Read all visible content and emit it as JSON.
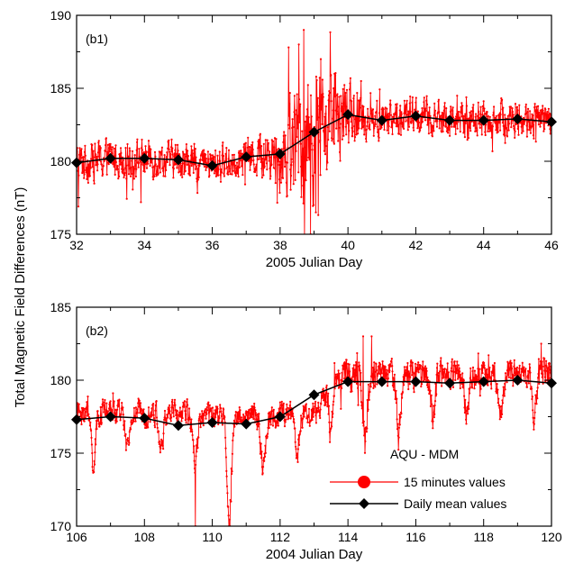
{
  "figure": {
    "ylabel": "Total Magnetic Field Differences (nT)",
    "colors": {
      "minutes": "#ff0000",
      "daily": "#000000",
      "axis": "#000000"
    }
  },
  "legend": {
    "title": "AQU - MDM",
    "items": [
      {
        "label": "15 minutes values",
        "color": "#ff0000",
        "marker": "circle"
      },
      {
        "label": "Daily mean values",
        "color": "#000000",
        "marker": "diamond"
      }
    ]
  },
  "chart_data": [
    {
      "type": "line",
      "panel_label": "(b1)",
      "xlabel": "2005 Julian Day",
      "xlim": [
        32,
        46
      ],
      "ylim": [
        175,
        190
      ],
      "xticks": [
        32,
        34,
        36,
        38,
        40,
        42,
        44,
        46
      ],
      "yticks": [
        175,
        180,
        185,
        190
      ],
      "grid": false,
      "daily_mean": {
        "x": [
          32,
          33,
          34,
          35,
          36,
          37,
          38,
          39,
          40,
          41,
          42,
          43,
          44,
          45,
          46
        ],
        "y": [
          179.9,
          180.2,
          180.2,
          180.1,
          179.7,
          180.3,
          180.5,
          182.0,
          183.2,
          182.8,
          183.1,
          182.8,
          182.8,
          182.9,
          182.7
        ]
      },
      "minutes_values": {
        "baseline": {
          "x": [
            32,
            33,
            34,
            35,
            36,
            37,
            38,
            39,
            40,
            41,
            42,
            43,
            44,
            45,
            46
          ],
          "y": [
            179.9,
            180.2,
            180.2,
            180.1,
            179.7,
            180.3,
            180.5,
            182.0,
            183.2,
            182.8,
            183.1,
            182.8,
            182.8,
            182.9,
            182.7
          ]
        },
        "amplitude": {
          "x": [
            32,
            35,
            37,
            37.8,
            38.5,
            39.0,
            39.5,
            40.2,
            41,
            43,
            46
          ],
          "y": [
            1.1,
            1.0,
            1.0,
            1.5,
            3.0,
            3.8,
            2.6,
            1.4,
            1.1,
            1.0,
            1.0
          ]
        },
        "spikes": [
          {
            "x": 32.05,
            "y": 176.9
          },
          {
            "x": 33.9,
            "y": 177.2
          },
          {
            "x": 38.25,
            "y": 187.8
          },
          {
            "x": 38.55,
            "y": 188.0
          },
          {
            "x": 38.7,
            "y": 189.0
          },
          {
            "x": 38.9,
            "y": 175.0
          },
          {
            "x": 39.05,
            "y": 176.5
          },
          {
            "x": 39.2,
            "y": 187.0
          },
          {
            "x": 39.6,
            "y": 186.0
          }
        ],
        "points_per_day": 96
      }
    },
    {
      "type": "line",
      "panel_label": "(b2)",
      "xlabel": "2004 Julian Day",
      "xlim": [
        106,
        120
      ],
      "ylim": [
        170,
        185
      ],
      "xticks": [
        106,
        108,
        110,
        112,
        114,
        116,
        118,
        120
      ],
      "yticks": [
        170,
        175,
        180,
        185
      ],
      "grid": false,
      "daily_mean": {
        "x": [
          106,
          107,
          108,
          109,
          110,
          111,
          112,
          113,
          114,
          115,
          116,
          117,
          118,
          119,
          120
        ],
        "y": [
          177.3,
          177.5,
          177.4,
          176.9,
          177.1,
          177.0,
          177.5,
          179.0,
          179.9,
          179.9,
          179.9,
          179.8,
          179.9,
          180.0,
          179.8
        ]
      },
      "minutes_values": {
        "baseline": {
          "x": [
            106,
            107,
            108,
            109,
            110,
            111,
            112,
            112.5,
            113,
            113.3,
            113.6,
            114,
            115,
            116,
            117,
            118,
            119,
            120
          ],
          "y": [
            177.8,
            177.8,
            177.8,
            177.7,
            177.6,
            177.5,
            177.6,
            177.8,
            177.5,
            178.8,
            180.0,
            180.5,
            180.4,
            180.3,
            180.4,
            180.3,
            180.4,
            180.6
          ]
        },
        "amplitude": {
          "x": [
            106,
            113,
            114,
            115,
            120
          ],
          "y": [
            0.7,
            0.7,
            1.0,
            0.8,
            0.8
          ]
        },
        "dips": {
          "period": 1.0,
          "phase": 106.5,
          "width": 0.09,
          "depths": [
            3.5,
            2.8,
            2.5,
            3.0,
            7.5,
            3.8,
            2.8,
            3.0,
            4.5,
            3.6,
            2.8,
            2.5,
            2.6,
            3.0
          ]
        },
        "spikes": [
          {
            "x": 109.5,
            "y": 170.0
          },
          {
            "x": 114.45,
            "y": 183.0
          },
          {
            "x": 114.7,
            "y": 183.0
          },
          {
            "x": 119.7,
            "y": 182.5
          }
        ],
        "points_per_day": 96
      }
    }
  ]
}
